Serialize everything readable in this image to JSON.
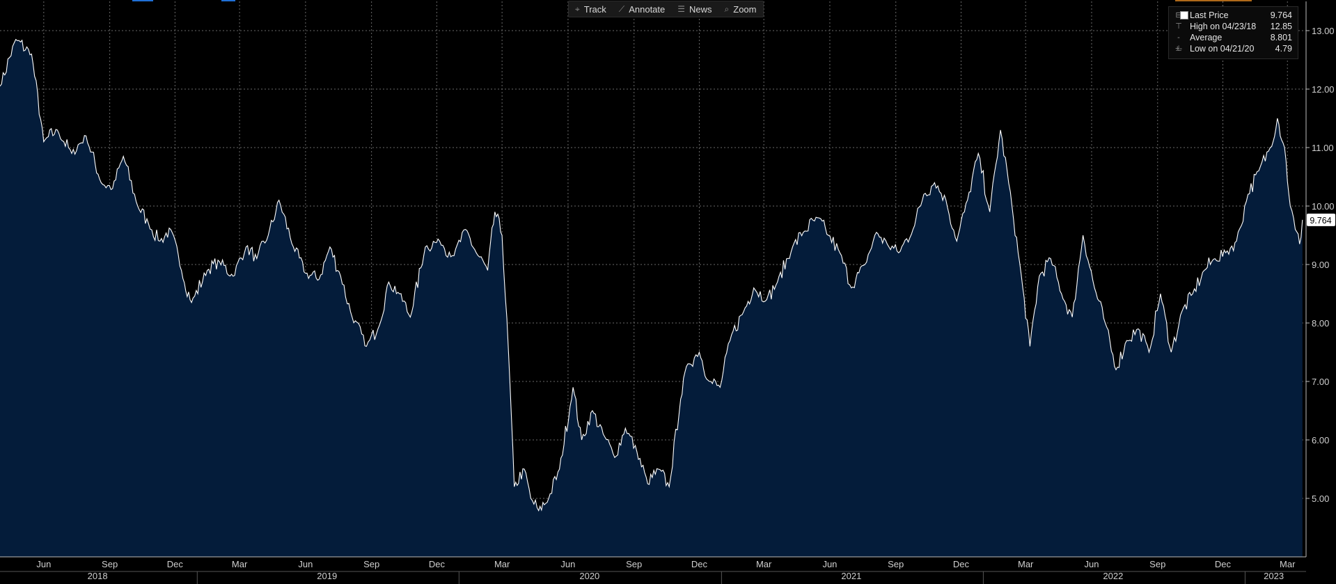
{
  "toolbar": {
    "track": "Track",
    "annotate": "Annotate",
    "news": "News",
    "zoom": "Zoom"
  },
  "legend": {
    "last_label": "Last Price",
    "last_value": "9.764",
    "high_label": "High on 04/23/18",
    "high_value": "12.85",
    "avg_label": "Average",
    "avg_value": "8.801",
    "low_label": "Low on 04/21/20",
    "low_value": "4.79"
  },
  "colors": {
    "fill": "#041c3a",
    "line": "#ffffff",
    "grid": "#6a6a6a",
    "background": "#000000"
  },
  "chart_data": {
    "type": "area",
    "x": [
      "2018-04-01",
      "2018-04-23",
      "2018-05-15",
      "2018-06-01",
      "2018-06-20",
      "2018-07-10",
      "2018-07-30",
      "2018-08-20",
      "2018-09-05",
      "2018-09-20",
      "2018-10-10",
      "2018-10-25",
      "2018-11-10",
      "2018-11-25",
      "2018-12-10",
      "2018-12-24",
      "2019-01-15",
      "2019-02-01",
      "2019-02-20",
      "2019-03-10",
      "2019-03-25",
      "2019-04-10",
      "2019-04-25",
      "2019-05-15",
      "2019-06-01",
      "2019-06-20",
      "2019-07-05",
      "2019-07-20",
      "2019-08-05",
      "2019-08-25",
      "2019-09-10",
      "2019-09-25",
      "2019-10-10",
      "2019-10-25",
      "2019-11-15",
      "2019-12-05",
      "2019-12-25",
      "2020-01-10",
      "2020-01-25",
      "2020-02-10",
      "2020-02-20",
      "2020-03-01",
      "2020-03-10",
      "2020-03-18",
      "2020-04-01",
      "2020-04-10",
      "2020-04-21",
      "2020-05-05",
      "2020-05-20",
      "2020-06-08",
      "2020-06-20",
      "2020-07-05",
      "2020-07-20",
      "2020-08-05",
      "2020-08-20",
      "2020-09-05",
      "2020-09-20",
      "2020-10-05",
      "2020-10-20",
      "2020-11-05",
      "2020-11-15",
      "2020-12-01",
      "2020-12-15",
      "2020-12-30",
      "2021-01-15",
      "2021-02-01",
      "2021-02-15",
      "2021-03-05",
      "2021-03-20",
      "2021-04-10",
      "2021-04-25",
      "2021-05-15",
      "2021-05-30",
      "2021-06-15",
      "2021-07-01",
      "2021-07-20",
      "2021-08-05",
      "2021-08-20",
      "2021-09-05",
      "2021-09-25",
      "2021-10-10",
      "2021-10-25",
      "2021-11-10",
      "2021-11-25",
      "2021-12-10",
      "2021-12-25",
      "2022-01-10",
      "2022-01-25",
      "2022-02-10",
      "2022-02-25",
      "2022-03-07",
      "2022-03-20",
      "2022-04-05",
      "2022-04-20",
      "2022-05-05",
      "2022-05-20",
      "2022-06-05",
      "2022-06-20",
      "2022-07-05",
      "2022-07-20",
      "2022-08-05",
      "2022-08-20",
      "2022-09-05",
      "2022-09-20",
      "2022-10-05",
      "2022-10-20",
      "2022-11-05",
      "2022-11-20",
      "2022-12-05",
      "2022-12-20",
      "2023-01-05",
      "2023-01-20",
      "2023-02-05",
      "2023-02-15",
      "2023-02-25",
      "2023-03-05",
      "2023-03-12",
      "2023-03-18",
      "2023-03-22"
    ],
    "values": [
      12.05,
      12.85,
      12.6,
      11.1,
      11.3,
      10.9,
      11.2,
      10.4,
      10.3,
      10.85,
      10.0,
      9.7,
      9.4,
      9.6,
      8.9,
      8.35,
      8.9,
      9.05,
      8.8,
      9.3,
      9.1,
      9.5,
      10.1,
      9.3,
      8.85,
      8.75,
      9.3,
      8.8,
      8.1,
      7.6,
      7.9,
      8.7,
      8.5,
      8.1,
      9.3,
      9.4,
      9.15,
      9.6,
      9.2,
      8.9,
      9.9,
      9.5,
      7.5,
      5.2,
      5.5,
      5.0,
      4.79,
      5.0,
      5.5,
      6.9,
      6.0,
      6.5,
      6.1,
      5.7,
      6.2,
      5.8,
      5.25,
      5.5,
      5.2,
      6.7,
      7.3,
      7.5,
      7.0,
      6.9,
      7.8,
      8.2,
      8.6,
      8.4,
      8.7,
      9.3,
      9.55,
      9.8,
      9.5,
      9.2,
      8.6,
      9.0,
      9.55,
      9.35,
      9.2,
      9.6,
      10.2,
      10.4,
      10.1,
      9.4,
      10.1,
      10.9,
      9.9,
      11.3,
      10.0,
      8.6,
      7.6,
      8.8,
      9.1,
      8.5,
      8.1,
      9.5,
      8.6,
      8.0,
      7.2,
      7.7,
      7.9,
      7.5,
      8.5,
      7.5,
      8.2,
      8.5,
      8.9,
      9.1,
      9.2,
      9.4,
      10.2,
      10.6,
      11.0,
      11.5,
      11.0,
      10.0,
      9.6,
      9.35,
      9.764
    ],
    "ylim": [
      4.0,
      13.5
    ],
    "yticks": [
      5.0,
      6.0,
      7.0,
      8.0,
      9.0,
      10.0,
      11.0,
      12.0,
      13.0
    ],
    "ytick_labels": [
      "5.00",
      "6.00",
      "7.00",
      "8.00",
      "9.00",
      "10.00",
      "11.00",
      "12.00",
      "13.00"
    ],
    "xlim": [
      "2018-04-01",
      "2023-03-27"
    ],
    "month_ticks": [
      {
        "date": "2018-06-01",
        "label": "Jun"
      },
      {
        "date": "2018-09-01",
        "label": "Sep"
      },
      {
        "date": "2018-12-01",
        "label": "Dec"
      },
      {
        "date": "2019-03-01",
        "label": "Mar"
      },
      {
        "date": "2019-06-01",
        "label": "Jun"
      },
      {
        "date": "2019-09-01",
        "label": "Sep"
      },
      {
        "date": "2019-12-01",
        "label": "Dec"
      },
      {
        "date": "2020-03-01",
        "label": "Mar"
      },
      {
        "date": "2020-06-01",
        "label": "Jun"
      },
      {
        "date": "2020-09-01",
        "label": "Sep"
      },
      {
        "date": "2020-12-01",
        "label": "Dec"
      },
      {
        "date": "2021-03-01",
        "label": "Mar"
      },
      {
        "date": "2021-06-01",
        "label": "Jun"
      },
      {
        "date": "2021-09-01",
        "label": "Sep"
      },
      {
        "date": "2021-12-01",
        "label": "Dec"
      },
      {
        "date": "2022-03-01",
        "label": "Mar"
      },
      {
        "date": "2022-06-01",
        "label": "Jun"
      },
      {
        "date": "2022-09-01",
        "label": "Sep"
      },
      {
        "date": "2022-12-01",
        "label": "Dec"
      },
      {
        "date": "2023-03-01",
        "label": "Mar"
      }
    ],
    "year_labels": [
      {
        "date": "2018-08-15",
        "label": "2018"
      },
      {
        "date": "2019-07-01",
        "label": "2019"
      },
      {
        "date": "2020-07-01",
        "label": "2020"
      },
      {
        "date": "2021-07-01",
        "label": "2021"
      },
      {
        "date": "2022-07-01",
        "label": "2022"
      },
      {
        "date": "2023-02-10",
        "label": "2023"
      }
    ],
    "year_boundaries": [
      "2019-01-01",
      "2020-01-01",
      "2021-01-01",
      "2022-01-01",
      "2023-01-01"
    ],
    "last_value_label": "9.764",
    "grid": true,
    "legend_position": "top-right"
  }
}
